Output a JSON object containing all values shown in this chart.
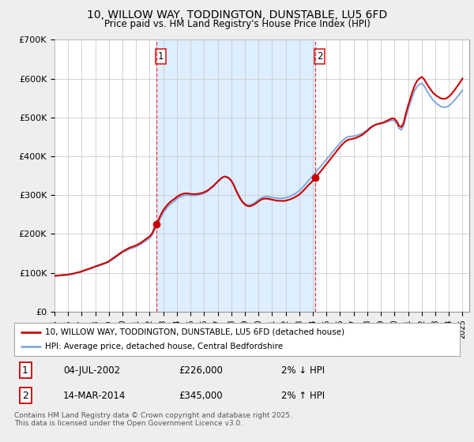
{
  "title": "10, WILLOW WAY, TODDINGTON, DUNSTABLE, LU5 6FD",
  "subtitle": "Price paid vs. HM Land Registry's House Price Index (HPI)",
  "background_color": "#eeeeee",
  "plot_bg_color": "#ffffff",
  "shaded_bg_color": "#ddeeff",
  "grid_color": "#cccccc",
  "line1_color": "#cc0000",
  "line2_color": "#88aadd",
  "vline_color": "#dd2222",
  "ylim": [
    0,
    700000
  ],
  "yticks": [
    0,
    100000,
    200000,
    300000,
    400000,
    500000,
    600000,
    700000
  ],
  "ytick_labels": [
    "£0",
    "£100K",
    "£200K",
    "£300K",
    "£400K",
    "£500K",
    "£600K",
    "£700K"
  ],
  "annotation1_year": 2002.5,
  "annotation1_price": 226000,
  "annotation2_year": 2014.2,
  "annotation2_price": 345000,
  "legend_line1": "10, WILLOW WAY, TODDINGTON, DUNSTABLE, LU5 6FD (detached house)",
  "legend_line2": "HPI: Average price, detached house, Central Bedfordshire",
  "footer": "Contains HM Land Registry data © Crown copyright and database right 2025.\nThis data is licensed under the Open Government Licence v3.0.",
  "table_row1": [
    "1",
    "04-JUL-2002",
    "£226,000",
    "2% ↓ HPI"
  ],
  "table_row2": [
    "2",
    "14-MAR-2014",
    "£345,000",
    "2% ↑ HPI"
  ],
  "hpi_data_x": [
    1995.0,
    1995.17,
    1995.33,
    1995.5,
    1995.67,
    1995.83,
    1996.0,
    1996.17,
    1996.33,
    1996.5,
    1996.67,
    1996.83,
    1997.0,
    1997.17,
    1997.33,
    1997.5,
    1997.67,
    1997.83,
    1998.0,
    1998.17,
    1998.33,
    1998.5,
    1998.67,
    1998.83,
    1999.0,
    1999.17,
    1999.33,
    1999.5,
    1999.67,
    1999.83,
    2000.0,
    2000.17,
    2000.33,
    2000.5,
    2000.67,
    2000.83,
    2001.0,
    2001.17,
    2001.33,
    2001.5,
    2001.67,
    2001.83,
    2002.0,
    2002.17,
    2002.33,
    2002.5,
    2002.67,
    2002.83,
    2003.0,
    2003.17,
    2003.33,
    2003.5,
    2003.67,
    2003.83,
    2004.0,
    2004.17,
    2004.33,
    2004.5,
    2004.67,
    2004.83,
    2005.0,
    2005.17,
    2005.33,
    2005.5,
    2005.67,
    2005.83,
    2006.0,
    2006.17,
    2006.33,
    2006.5,
    2006.67,
    2006.83,
    2007.0,
    2007.17,
    2007.33,
    2007.5,
    2007.67,
    2007.83,
    2008.0,
    2008.17,
    2008.33,
    2008.5,
    2008.67,
    2008.83,
    2009.0,
    2009.17,
    2009.33,
    2009.5,
    2009.67,
    2009.83,
    2010.0,
    2010.17,
    2010.33,
    2010.5,
    2010.67,
    2010.83,
    2011.0,
    2011.17,
    2011.33,
    2011.5,
    2011.67,
    2011.83,
    2012.0,
    2012.17,
    2012.33,
    2012.5,
    2012.67,
    2012.83,
    2013.0,
    2013.17,
    2013.33,
    2013.5,
    2013.67,
    2013.83,
    2014.0,
    2014.17,
    2014.33,
    2014.5,
    2014.67,
    2014.83,
    2015.0,
    2015.17,
    2015.33,
    2015.5,
    2015.67,
    2015.83,
    2016.0,
    2016.17,
    2016.33,
    2016.5,
    2016.67,
    2016.83,
    2017.0,
    2017.17,
    2017.33,
    2017.5,
    2017.67,
    2017.83,
    2018.0,
    2018.17,
    2018.33,
    2018.5,
    2018.67,
    2018.83,
    2019.0,
    2019.17,
    2019.33,
    2019.5,
    2019.67,
    2019.83,
    2020.0,
    2020.17,
    2020.33,
    2020.5,
    2020.67,
    2020.83,
    2021.0,
    2021.17,
    2021.33,
    2021.5,
    2021.67,
    2021.83,
    2022.0,
    2022.17,
    2022.33,
    2022.5,
    2022.67,
    2022.83,
    2023.0,
    2023.17,
    2023.33,
    2023.5,
    2023.67,
    2023.83,
    2024.0,
    2024.17,
    2024.33,
    2024.5,
    2024.67,
    2024.83,
    2025.0
  ],
  "hpi_data_y": [
    92000,
    92500,
    93000,
    93500,
    94000,
    94500,
    95000,
    96000,
    97000,
    98500,
    100000,
    101000,
    103000,
    105000,
    107000,
    109000,
    111000,
    113000,
    115000,
    117000,
    119000,
    121000,
    123000,
    125000,
    128000,
    132000,
    136000,
    140000,
    144000,
    148000,
    152000,
    155000,
    158000,
    161000,
    163000,
    165000,
    167000,
    170000,
    173000,
    177000,
    181000,
    185000,
    189000,
    196000,
    208000,
    220000,
    232000,
    244000,
    255000,
    263000,
    270000,
    276000,
    281000,
    285000,
    290000,
    294000,
    297000,
    299000,
    300000,
    300000,
    299000,
    299000,
    299000,
    300000,
    301000,
    303000,
    305000,
    308000,
    312000,
    317000,
    322000,
    328000,
    334000,
    340000,
    345000,
    348000,
    347000,
    344000,
    338000,
    328000,
    315000,
    303000,
    292000,
    284000,
    278000,
    275000,
    274000,
    276000,
    279000,
    283000,
    288000,
    292000,
    295000,
    296000,
    296000,
    295000,
    294000,
    293000,
    292000,
    292000,
    292000,
    292000,
    293000,
    295000,
    297000,
    300000,
    303000,
    307000,
    311000,
    317000,
    323000,
    330000,
    337000,
    343000,
    350000,
    357000,
    364000,
    371000,
    378000,
    385000,
    392000,
    399000,
    406000,
    413000,
    420000,
    427000,
    434000,
    440000,
    445000,
    449000,
    451000,
    451000,
    452000,
    453000,
    455000,
    457000,
    460000,
    464000,
    468000,
    473000,
    477000,
    480000,
    482000,
    483000,
    484000,
    485000,
    487000,
    489000,
    491000,
    493000,
    491000,
    484000,
    472000,
    468000,
    478000,
    500000,
    520000,
    538000,
    555000,
    570000,
    580000,
    585000,
    588000,
    582000,
    572000,
    562000,
    553000,
    545000,
    539000,
    534000,
    530000,
    527000,
    526000,
    527000,
    530000,
    535000,
    541000,
    548000,
    555000,
    562000,
    570000
  ]
}
